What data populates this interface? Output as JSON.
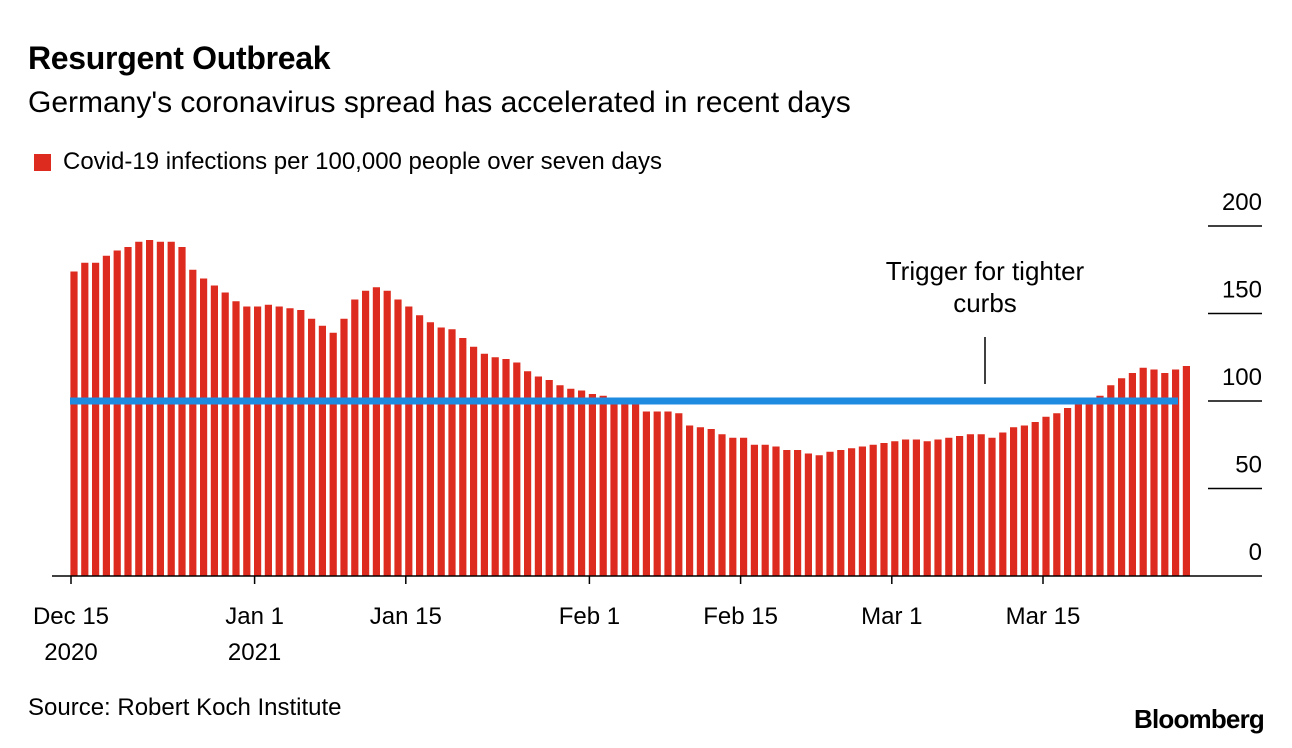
{
  "colors": {
    "bar": "#dd2b1f",
    "threshold": "#1f8be0",
    "axis": "#000000"
  },
  "chart_data": {
    "type": "bar",
    "title": "Resurgent Outbreak",
    "subtitle": "Germany's coronavirus spread has accelerated in recent days",
    "legend": "Covid-19 infections per 100,000 people over seven days",
    "ylim": [
      0,
      200
    ],
    "yticks": [
      "0",
      "50",
      "100",
      "150",
      "200"
    ],
    "xticks": [
      {
        "index": 0,
        "line1": "Dec 15",
        "line2": "2020"
      },
      {
        "index": 17,
        "line1": "Jan 1",
        "line2": "2021"
      },
      {
        "index": 31,
        "line1": "Jan 15",
        "line2": ""
      },
      {
        "index": 48,
        "line1": "Feb 1",
        "line2": ""
      },
      {
        "index": 62,
        "line1": "Feb 15",
        "line2": ""
      },
      {
        "index": 76,
        "line1": "Mar 1",
        "line2": ""
      },
      {
        "index": 90,
        "line1": "Mar 15",
        "line2": ""
      }
    ],
    "threshold": {
      "value": 100,
      "label_line1": "Trigger for tighter",
      "label_line2": "curbs",
      "label_index": 85
    },
    "values": [
      174,
      179,
      179,
      183,
      186,
      188,
      191,
      192,
      191,
      191,
      188,
      175,
      170,
      166,
      162,
      157,
      154,
      154,
      155,
      154,
      153,
      152,
      147,
      143,
      139,
      147,
      158,
      163,
      165,
      163,
      158,
      154,
      149,
      145,
      142,
      141,
      136,
      131,
      127,
      125,
      124,
      122,
      117,
      114,
      112,
      109,
      107,
      106,
      104,
      103,
      102,
      99,
      98,
      94,
      94,
      94,
      93,
      86,
      85,
      84,
      81,
      79,
      79,
      75,
      75,
      74,
      72,
      72,
      70,
      69,
      71,
      72,
      73,
      74,
      75,
      76,
      77,
      78,
      78,
      77,
      78,
      79,
      80,
      81,
      81,
      79,
      82,
      85,
      86,
      88,
      91,
      93,
      96,
      98,
      100,
      103,
      109,
      113,
      116,
      119,
      118,
      116,
      118,
      120
    ]
  },
  "source": "Source: Robert Koch Institute",
  "brand": "Bloomberg"
}
